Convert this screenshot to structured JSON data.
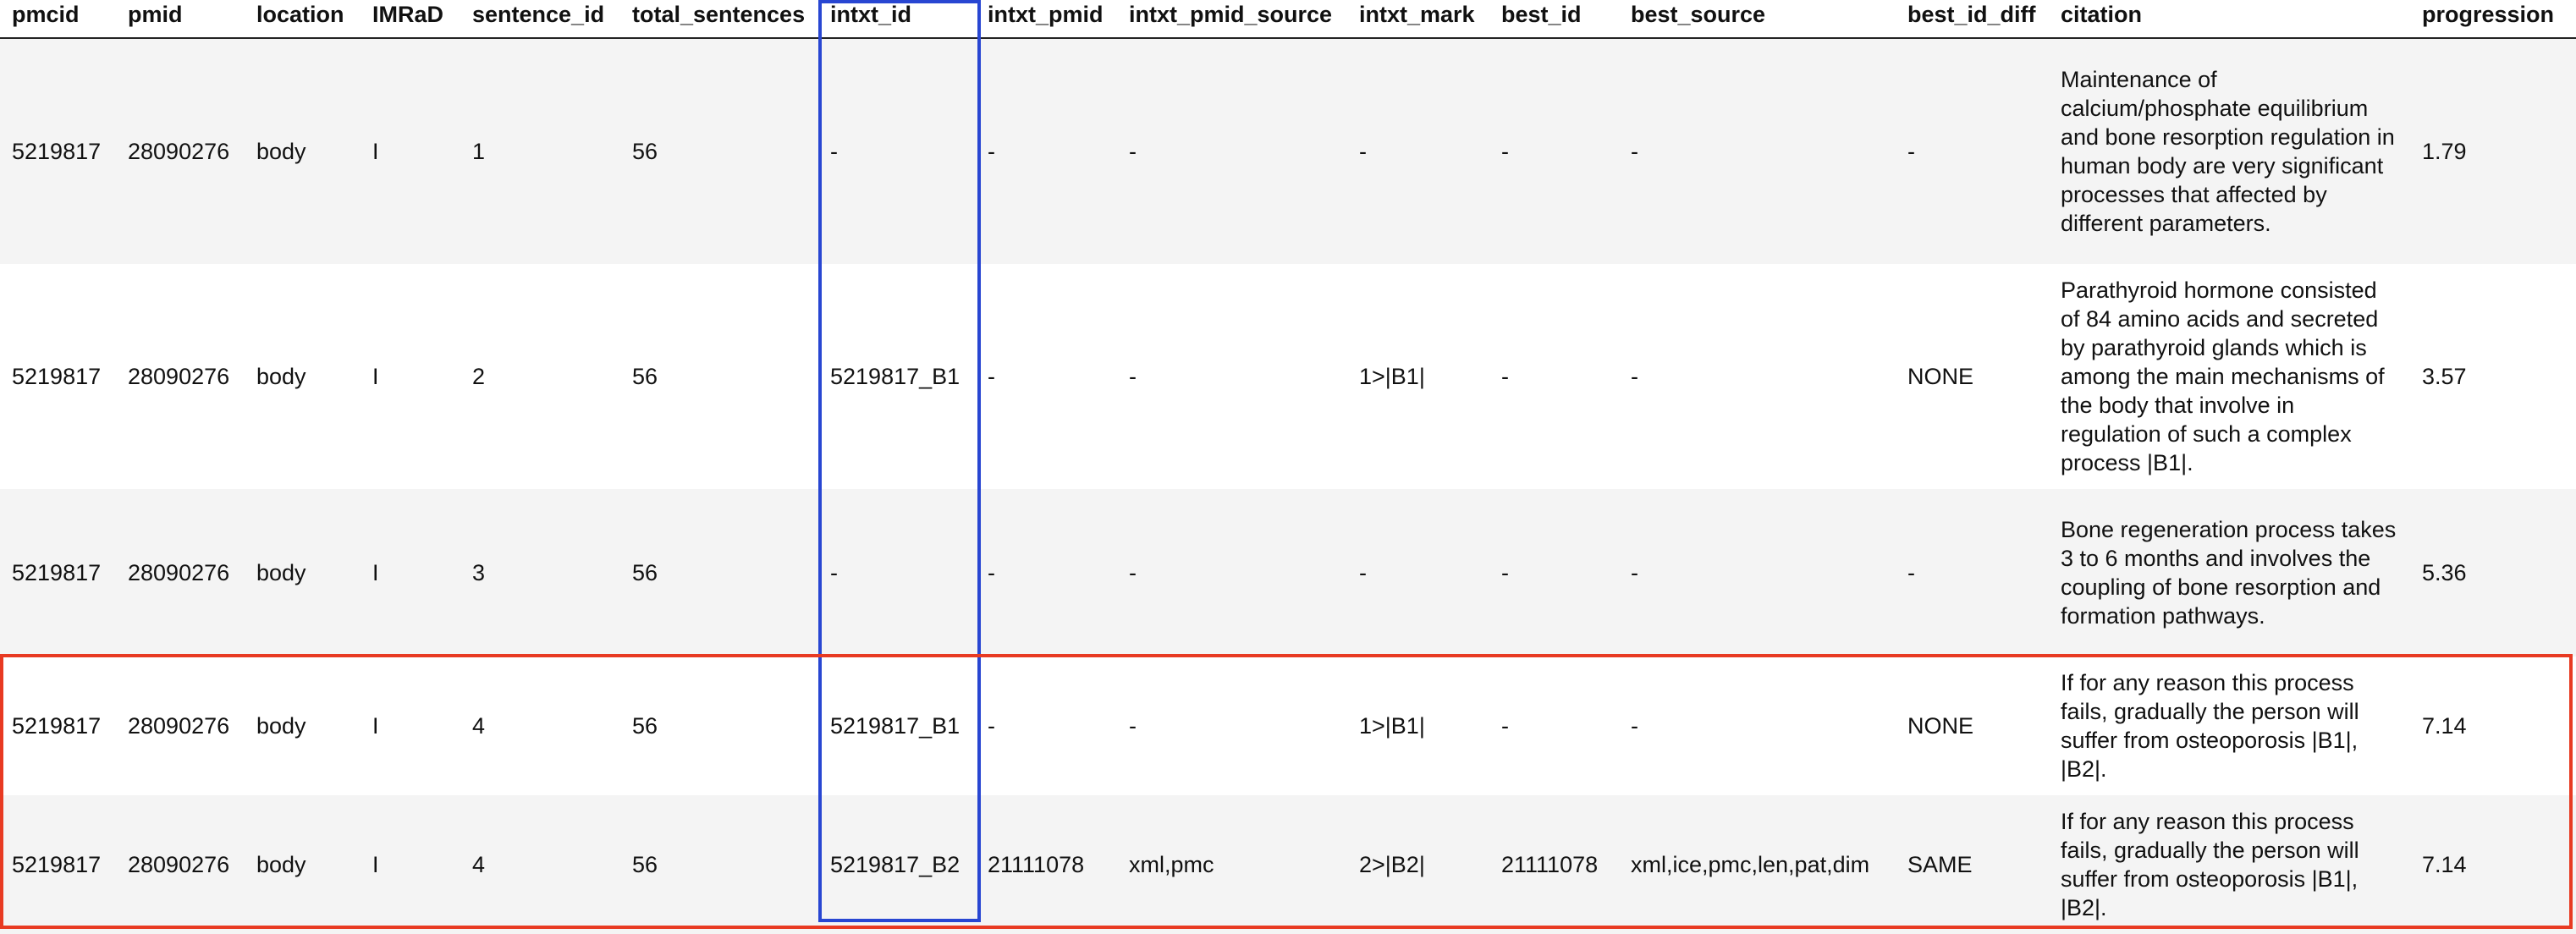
{
  "columns": [
    "pmcid",
    "pmid",
    "location",
    "IMRaD",
    "sentence_id",
    "total_sentences",
    "intxt_id",
    "intxt_pmid",
    "intxt_pmid_source",
    "intxt_mark",
    "best_id",
    "best_source",
    "best_id_diff",
    "citation",
    "progression"
  ],
  "rows": [
    [
      "5219817",
      "28090276",
      "body",
      "I",
      "1",
      "56",
      "-",
      "-",
      "-",
      "-",
      "-",
      "-",
      "-",
      "Maintenance of calcium/phosphate equilibrium and bone resorption regulation in human body are very significant processes that affected by different parameters.",
      "1.79"
    ],
    [
      "5219817",
      "28090276",
      "body",
      "I",
      "2",
      "56",
      "5219817_B1",
      "-",
      "-",
      "1>|B1|",
      "-",
      "-",
      "NONE",
      "Parathyroid hormone consisted of 84 amino acids and secreted by parathyroid glands which is among the main mechanisms of the body that involve in regulation of such a complex process |B1|.",
      "3.57"
    ],
    [
      "5219817",
      "28090276",
      "body",
      "I",
      "3",
      "56",
      "-",
      "-",
      "-",
      "-",
      "-",
      "-",
      "-",
      "Bone regeneration process takes 3 to 6 months and involves the coupling of bone resorption and formation pathways.",
      "5.36"
    ],
    [
      "5219817",
      "28090276",
      "body",
      "I",
      "4",
      "56",
      "5219817_B1",
      "-",
      "-",
      "1>|B1|",
      "-",
      "-",
      "NONE",
      "If for any reason this process fails, gradually the person will suffer from osteoporosis |B1|, |B2|.",
      "7.14"
    ],
    [
      "5219817",
      "28090276",
      "body",
      "I",
      "4",
      "56",
      "5219817_B2",
      "21111078",
      "xml,pmc",
      "2>|B2|",
      "21111078",
      "xml,ice,pmc,len,pat,dim",
      "SAME",
      "If for any reason this process fails, gradually the person will suffer from osteoporosis |B1|, |B2|.",
      "7.14"
    ]
  ],
  "highlights": {
    "column_box_color": "#2846d2",
    "row_box_color": "#e83a22",
    "highlighted_column": "intxt_id"
  }
}
